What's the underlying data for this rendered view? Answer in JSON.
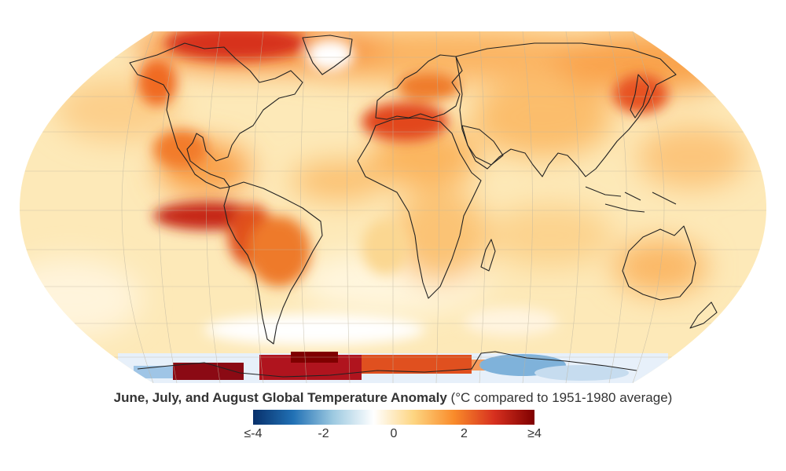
{
  "caption": {
    "title": "June, July, and August Global Temperature Anomaly",
    "subtitle": "(°C compared to 1951-1980 average)"
  },
  "colorbar": {
    "ticks": [
      {
        "label": "≤-4",
        "value": -4
      },
      {
        "label": "-2",
        "value": -2
      },
      {
        "label": "0",
        "value": 0
      },
      {
        "label": "2",
        "value": 2
      },
      {
        "label": "≥4",
        "value": 4
      }
    ],
    "range": [
      -4,
      4
    ],
    "stops": [
      "#08306b",
      "#2171b5",
      "#9ecae1",
      "#ffffff",
      "#fdd581",
      "#f98b2a",
      "#d7301f",
      "#7f0000"
    ]
  },
  "colors": {
    "coastline": "#222222",
    "graticule": "#bdb5a0",
    "base_warm": "#fde9b8"
  },
  "map_overlays": {
    "warm_regions": [
      {
        "name": "North Atlantic / Canada",
        "anomaly": 3.5
      },
      {
        "name": "Mediterranean / North Africa",
        "anomaly": 3.5
      },
      {
        "name": "Eastern Tropical Pacific",
        "anomaly": 4
      },
      {
        "name": "South America",
        "anomaly": 3
      },
      {
        "name": "Antarctic Peninsula / Weddell Sea",
        "anomaly": 4
      },
      {
        "name": "Japan / NW Pacific",
        "anomaly": 3
      },
      {
        "name": "Eastern Europe / Russia",
        "anomaly": 2.5
      }
    ],
    "cool_regions": [
      {
        "name": "East Antarctica coast",
        "anomaly": -2
      }
    ]
  }
}
